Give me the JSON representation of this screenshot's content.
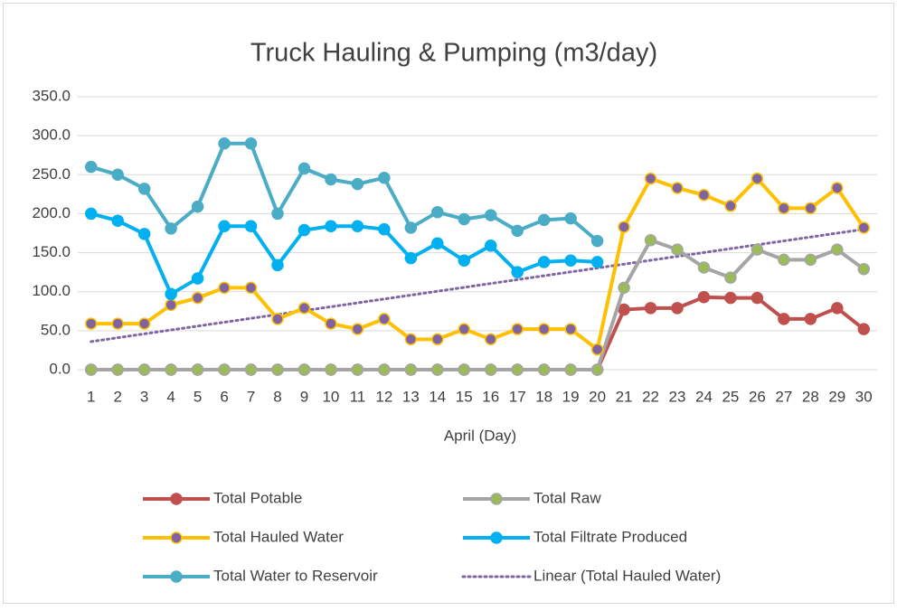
{
  "chart_data": {
    "type": "line",
    "title": "Truck Hauling & Pumping (m3/day)",
    "x_label": "April (Day)",
    "x": [
      1,
      2,
      3,
      4,
      5,
      6,
      7,
      8,
      9,
      10,
      11,
      12,
      13,
      14,
      15,
      16,
      17,
      18,
      19,
      20,
      21,
      22,
      23,
      24,
      25,
      26,
      27,
      28,
      29,
      30
    ],
    "ylim": [
      0,
      350
    ],
    "yticks": [
      {
        "value": 0,
        "label": "0.0"
      },
      {
        "value": 50,
        "label": "50.0"
      },
      {
        "value": 100,
        "label": "100.0"
      },
      {
        "value": 150,
        "label": "150.0"
      },
      {
        "value": 200,
        "label": "200.0"
      },
      {
        "value": 250,
        "label": "250.0"
      },
      {
        "value": 300,
        "label": "300.0"
      },
      {
        "value": 350,
        "label": "350.0"
      }
    ],
    "grid": true,
    "legend": "bottom",
    "series": [
      {
        "name": "Total Potable",
        "color": "#c0504d",
        "marker_color": "#c0504d",
        "values": [
          0,
          0,
          0,
          0,
          0,
          0,
          0,
          0,
          0,
          0,
          0,
          0,
          0,
          0,
          0,
          0,
          0,
          0,
          0,
          0,
          77,
          79,
          79,
          93,
          92,
          92,
          65,
          65,
          79,
          52
        ]
      },
      {
        "name": "Total Raw",
        "color": "#a5a5a5",
        "marker_color": "#9bbb59",
        "values": [
          0,
          0,
          0,
          0,
          0,
          0,
          0,
          0,
          0,
          0,
          0,
          0,
          0,
          0,
          0,
          0,
          0,
          0,
          0,
          0,
          105,
          166,
          154,
          131,
          118,
          154,
          141,
          141,
          154,
          129
        ]
      },
      {
        "name": "Total Hauled Water",
        "color": "#ffc000",
        "marker_color": "#8064a2",
        "values": [
          59,
          59,
          59,
          83,
          92,
          105,
          105,
          65,
          79,
          59,
          52,
          65,
          39,
          39,
          52,
          39,
          52,
          52,
          52,
          26,
          183,
          245,
          233,
          224,
          210,
          245,
          207,
          207,
          233,
          182
        ]
      },
      {
        "name": "Total Filtrate Produced",
        "color": "#00b0f0",
        "marker_color": "#00b0f0",
        "values": [
          200,
          191,
          174,
          97,
          117,
          184,
          184,
          134,
          179,
          184,
          184,
          180,
          143,
          162,
          140,
          159,
          125,
          138,
          140,
          138,
          null,
          null,
          null,
          null,
          null,
          null,
          null,
          null,
          null,
          null
        ]
      },
      {
        "name": "Total Water to Reservoir",
        "color": "#4bacc6",
        "marker_color": "#4bacc6",
        "values": [
          260,
          250,
          232,
          181,
          209,
          290,
          290,
          200,
          258,
          244,
          238,
          246,
          182,
          202,
          193,
          198,
          178,
          192,
          194,
          165,
          null,
          null,
          null,
          null,
          null,
          null,
          null,
          null,
          null,
          null
        ]
      }
    ],
    "trendline": {
      "name": "Linear (Total Hauled Water)",
      "color": "#8064a2",
      "x": [
        1,
        30
      ],
      "values": [
        36,
        180
      ]
    }
  }
}
